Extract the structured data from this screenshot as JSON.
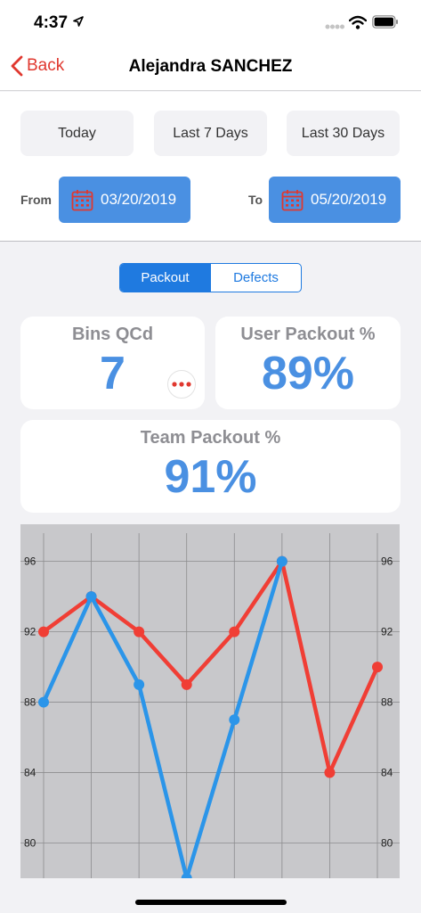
{
  "status_bar": {
    "time": "4:37",
    "icons": [
      "location-arrow-icon",
      "cellular-signal-icon",
      "wifi-icon",
      "battery-icon"
    ]
  },
  "nav": {
    "back_label": "Back",
    "title": "Alejandra SANCHEZ"
  },
  "filters": {
    "ranges": [
      "Today",
      "Last 7 Days",
      "Last 30 Days"
    ],
    "from_label": "From",
    "from_date": "03/20/2019",
    "to_label": "To",
    "to_date": "05/20/2019"
  },
  "tabs": {
    "items": [
      "Packout",
      "Defects"
    ],
    "selected": "Packout"
  },
  "stats": {
    "bins_qcd_label": "Bins QCd",
    "bins_qcd_value": "7",
    "user_packout_label": "User Packout %",
    "user_packout_value": "89%",
    "team_packout_label": "Team Packout %",
    "team_packout_value": "91%"
  },
  "colors": {
    "accent_red": "#e0382f",
    "accent_blue": "#4a90e2",
    "segment_blue": "#1f7ae0",
    "series_red": "#f03e35",
    "series_blue": "#2b95e9",
    "chart_bg": "#c8c8cb"
  },
  "chart_data": {
    "type": "line",
    "x": [
      0,
      1,
      2,
      3,
      4,
      5,
      6,
      7
    ],
    "ylim": [
      78,
      97.5
    ],
    "yticks": [
      "80",
      "84",
      "88",
      "92",
      "96"
    ],
    "grid": true,
    "legend": "none",
    "series": [
      {
        "color": "#f03e35",
        "values": [
          92,
          94,
          92,
          89,
          92,
          96,
          84,
          90
        ]
      },
      {
        "color": "#2b95e9",
        "values": [
          88,
          94,
          89,
          78,
          87,
          96,
          null,
          null
        ]
      }
    ]
  }
}
